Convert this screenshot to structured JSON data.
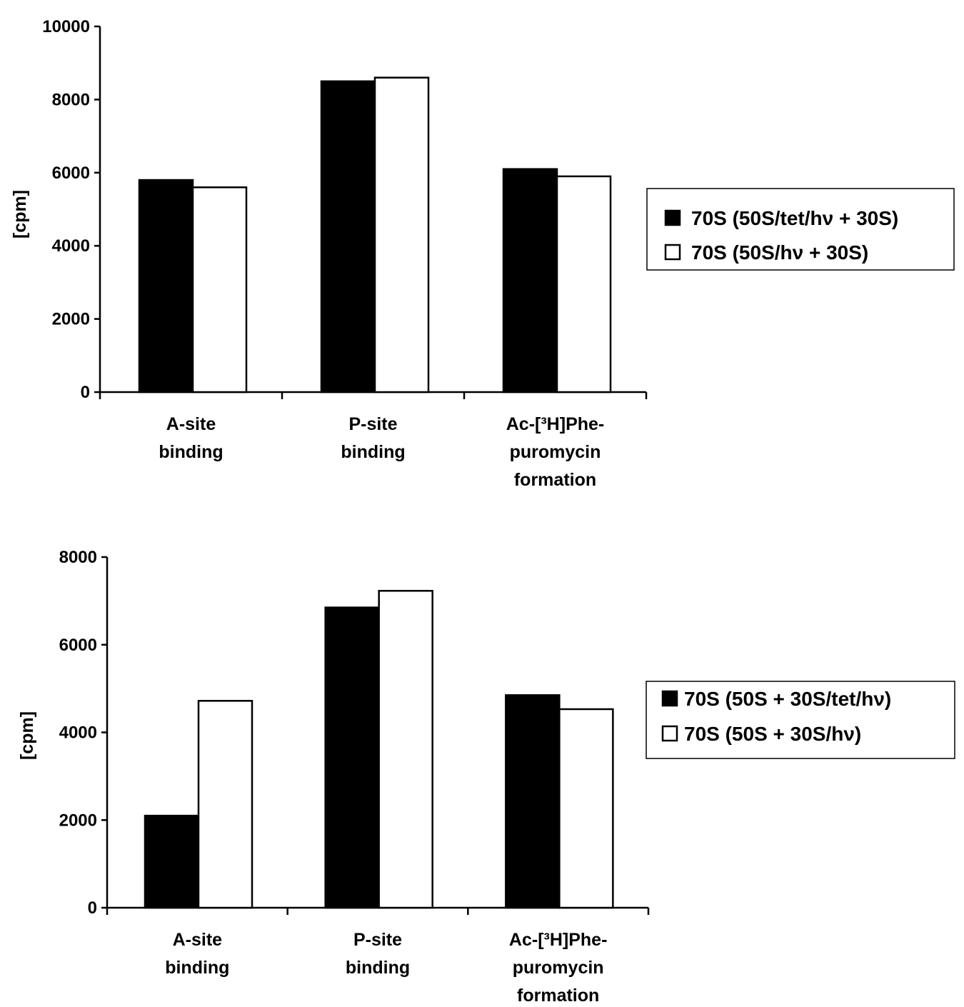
{
  "chart_data": [
    {
      "type": "bar",
      "categories": [
        [
          "A-site",
          "binding"
        ],
        [
          "P-site",
          "binding"
        ],
        [
          "Ac-[³H]Phe-",
          "puromycin",
          "formation"
        ]
      ],
      "series": [
        {
          "name": "70S (50S/tet/hν + 30S)",
          "values": [
            5800,
            8500,
            6100
          ],
          "color": "#000000"
        },
        {
          "name": "70S (50S/hν + 30S)",
          "values": [
            5600,
            8600,
            5900
          ],
          "color": "#ffffff"
        }
      ],
      "ylabel": "[cpm]",
      "ylim": [
        0,
        10000
      ],
      "yticks": [
        "0",
        "2000",
        "4000",
        "6000",
        "8000",
        "10000"
      ],
      "legend": "right",
      "grid": false
    },
    {
      "type": "bar",
      "categories": [
        [
          "A-site",
          "binding"
        ],
        [
          "P-site",
          "binding"
        ],
        [
          "Ac-[³H]Phe-",
          "puromycin",
          "formation"
        ]
      ],
      "series": [
        {
          "name": "70S (50S + 30S/tet/hν)",
          "values": [
            2100,
            6850,
            4850
          ],
          "color": "#000000"
        },
        {
          "name": "70S (50S + 30S/hν)",
          "values": [
            4720,
            7230,
            4530
          ],
          "color": "#ffffff"
        }
      ],
      "ylabel": "[cpm]",
      "ylim": [
        0,
        8000
      ],
      "yticks": [
        "0",
        "2000",
        "4000",
        "6000",
        "8000"
      ],
      "legend": "right",
      "grid": false
    }
  ]
}
